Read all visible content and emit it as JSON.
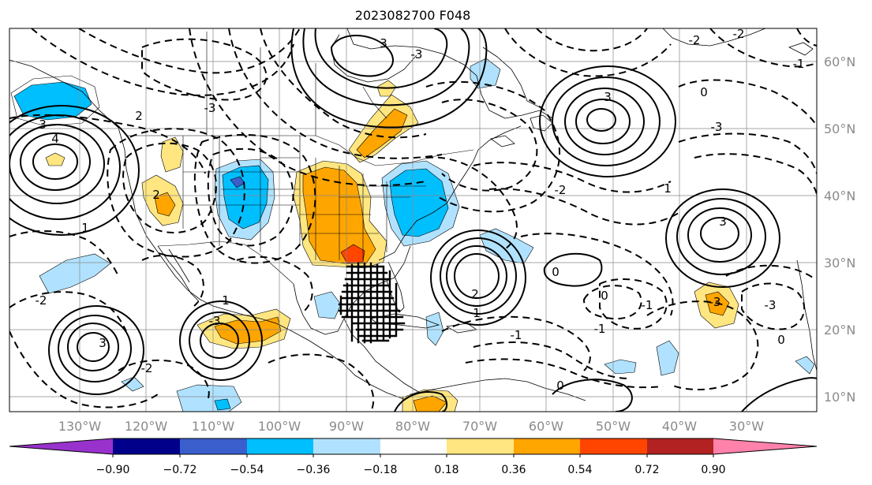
{
  "title": "2023082700 F048",
  "lon_labels": [
    "130°W",
    "120°W",
    "110°W",
    "100°W",
    "90°W",
    "80°W",
    "70°W",
    "60°W",
    "50°W",
    "40°W",
    "30°W"
  ],
  "lat_labels": [
    "60°N",
    "50°N",
    "40°N",
    "30°N",
    "20°N",
    "10°N"
  ],
  "colorbar": {
    "ticks": [
      "−0.90",
      "−0.72",
      "−0.54",
      "−0.36",
      "−0.18",
      "0.18",
      "0.36",
      "0.54",
      "0.72",
      "0.90"
    ],
    "colors": [
      "#9932cc",
      "#00008b",
      "#3a5fcd",
      "#00bfff",
      "#b0e2ff",
      "#ffffff",
      "#ffe680",
      "#ffa500",
      "#ff4500",
      "#b22222",
      "#ff82ab"
    ]
  },
  "contour_labels": {
    "c_pac_a": "4",
    "c_pac_b": "3",
    "c_pac_c": "2",
    "c_epac_a": "3",
    "c_epac_b": "1",
    "c_mex_a": "1",
    "c_mex_b": "2",
    "c_atl_a": "2",
    "c_atl_b": "0",
    "c_mid_a": "0",
    "c_mid_b": "-1",
    "c_mid_c": "-1",
    "c_na_a": "3",
    "c_na_b": "0",
    "c_eatl_a": "3",
    "c_eatl_b": "-3",
    "c_eatl_c": "1",
    "c_nw_a": "-2",
    "c_nw_b": "-3",
    "c_n_a": "-3",
    "c_n_b": "-2",
    "c_ca_a": "-2",
    "c_ca_b": "1",
    "c_ne_a": "-2",
    "c_ne_b": "-1",
    "c_s_a": "-2",
    "c_s_b": "-1",
    "c_s_c": "0",
    "c_se_a": "-3",
    "c_se_b": "0",
    "c_hud_a": "-3",
    "c_hud_b": "3",
    "c_gl": "-3"
  }
}
